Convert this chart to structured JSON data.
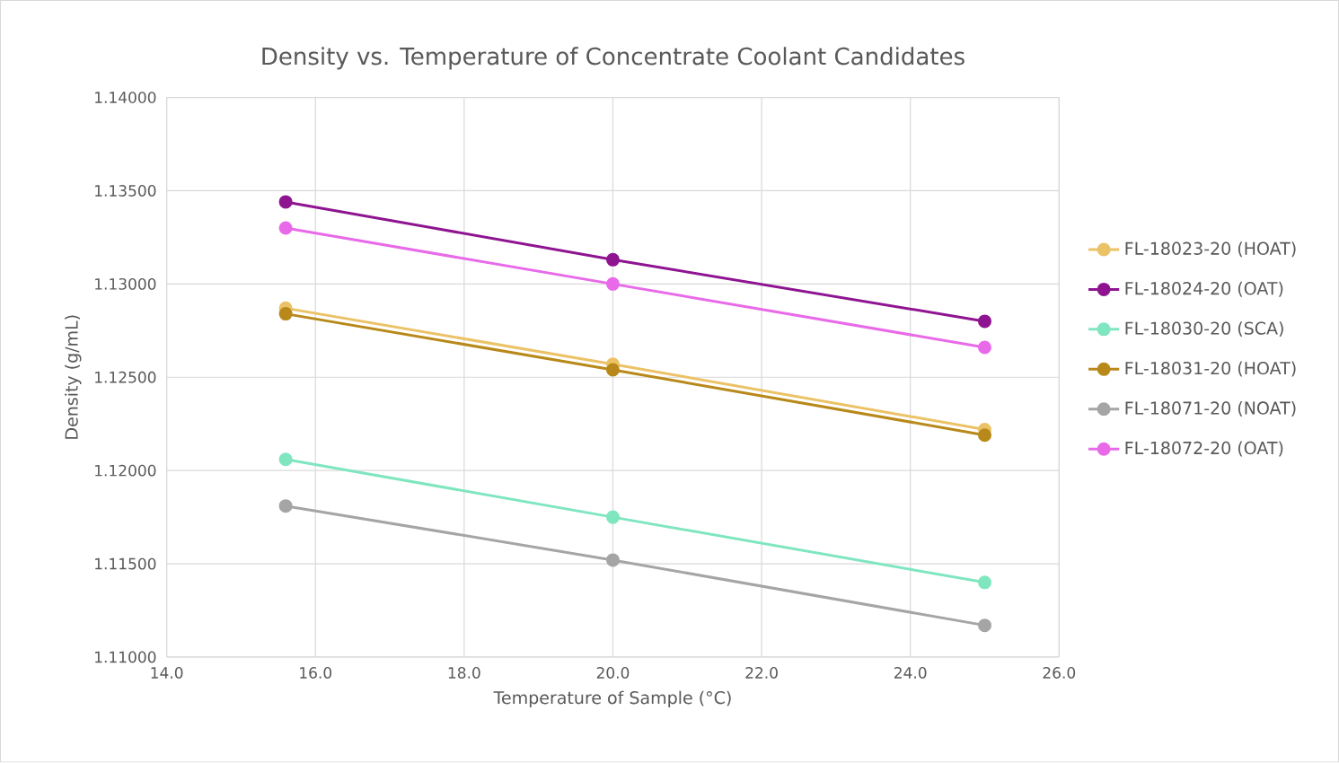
{
  "chart_data": {
    "type": "line",
    "title": "Density vs. Temperature of Concentrate Coolant Candidates",
    "xlabel": "Temperature of Sample (°C)",
    "ylabel": "Density (g/mL)",
    "xlim": [
      14,
      26
    ],
    "xticks": [
      {
        "value": 14,
        "label": "14.0"
      },
      {
        "value": 16,
        "label": "16.0"
      },
      {
        "value": 18,
        "label": "18.0"
      },
      {
        "value": 20,
        "label": "20.0"
      },
      {
        "value": 22,
        "label": "22.0"
      },
      {
        "value": 24,
        "label": "24.0"
      },
      {
        "value": 26,
        "label": "26.0"
      }
    ],
    "ylim": [
      1.11,
      1.14
    ],
    "yticks": [
      {
        "value": 1.11,
        "label": "1.11000"
      },
      {
        "value": 1.115,
        "label": "1.11500"
      },
      {
        "value": 1.12,
        "label": "1.12000"
      },
      {
        "value": 1.125,
        "label": "1.12500"
      },
      {
        "value": 1.13,
        "label": "1.13000"
      },
      {
        "value": 1.135,
        "label": "1.13500"
      },
      {
        "value": 1.14,
        "label": "1.14000"
      }
    ],
    "x": [
      15.6,
      20,
      25
    ],
    "grid": true,
    "legend": "right",
    "marker": "circle",
    "line_style": "solid",
    "series": [
      {
        "name": "FL-18023-20 (HOAT)",
        "color": "#ebc266",
        "values": [
          1.1287,
          1.1257,
          1.1222
        ]
      },
      {
        "name": "FL-18024-20 (OAT)",
        "color": "#8e1490",
        "values": [
          1.1344,
          1.1313,
          1.128
        ]
      },
      {
        "name": "FL-18030-20 (SCA)",
        "color": "#7fe6c0",
        "values": [
          1.1206,
          1.1175,
          1.114
        ]
      },
      {
        "name": "FL-18031-20 (HOAT)",
        "color": "#b8891a",
        "values": [
          1.1284,
          1.1254,
          1.1219
        ]
      },
      {
        "name": "FL-18071-20 (NOAT)",
        "color": "#a5a5a5",
        "values": [
          1.1181,
          1.1152,
          1.1117
        ]
      },
      {
        "name": "FL-18072-20 (OAT)",
        "color": "#e86ae8",
        "values": [
          1.133,
          1.13,
          1.1266
        ]
      }
    ]
  }
}
